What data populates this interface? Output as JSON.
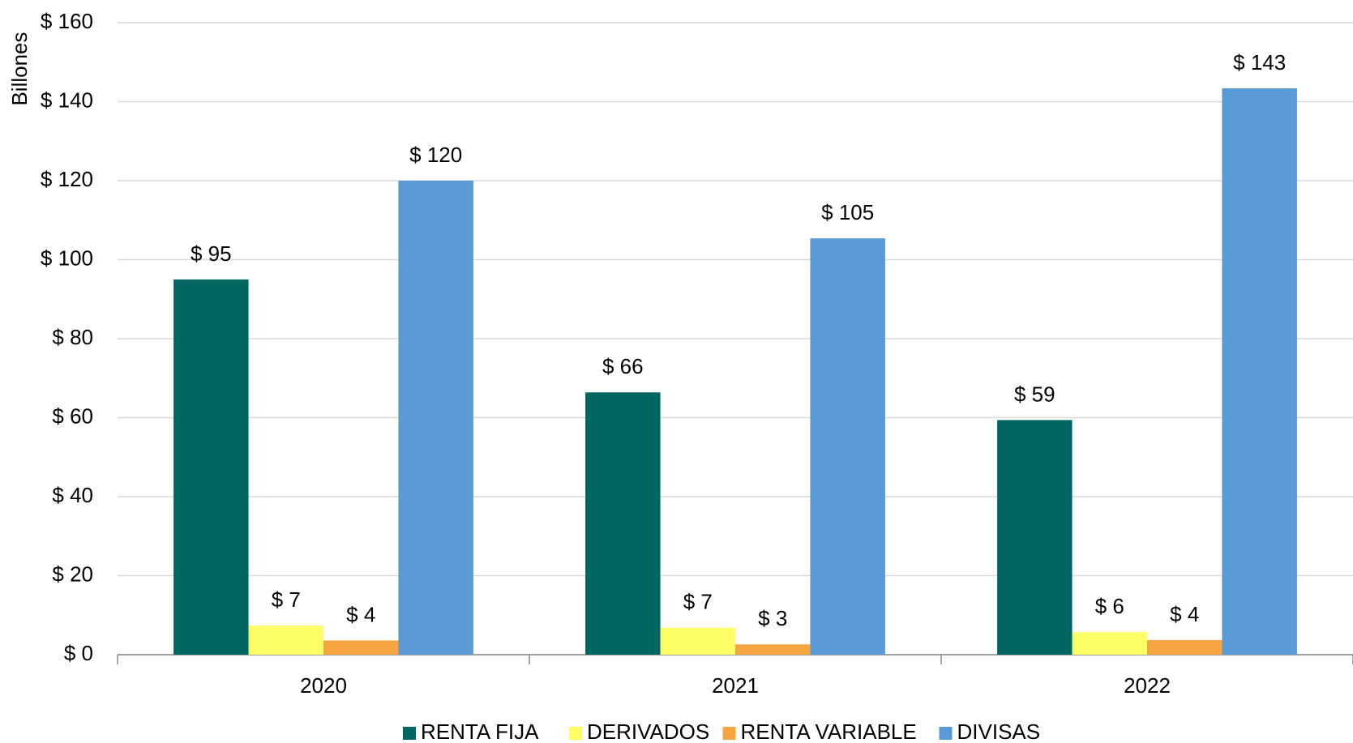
{
  "chart_data": {
    "type": "bar",
    "y_label": "Billones",
    "categories": [
      "2020",
      "2021",
      "2022"
    ],
    "series": [
      {
        "name": "RENTA FIJA",
        "color": "#006661",
        "values": [
          95.0,
          66.4,
          59.4
        ],
        "value_labels": [
          "$ 95",
          "$ 66",
          "$ 59"
        ]
      },
      {
        "name": "DERIVADOS",
        "color": "#ffff66",
        "values": [
          7.4,
          6.8,
          5.7
        ],
        "value_labels": [
          "$ 7",
          "$ 7",
          "$ 6"
        ]
      },
      {
        "name": "RENTA VARIABLE",
        "color": "#f7a540",
        "values": [
          3.6,
          2.6,
          3.7
        ],
        "value_labels": [
          "$ 4",
          "$ 3",
          "$ 4"
        ]
      },
      {
        "name": "DIVISAS",
        "color": "#5b9bd5",
        "values": [
          120,
          105.4,
          143.4
        ],
        "value_labels": [
          "$ 120",
          "$ 105",
          "$ 143"
        ]
      }
    ],
    "ylim": [
      0,
      160
    ],
    "yticks": [
      {
        "value": 0,
        "label": "$ 0"
      },
      {
        "value": 20,
        "label": "$ 20"
      },
      {
        "value": 40,
        "label": "$ 40"
      },
      {
        "value": 60,
        "label": "$ 60"
      },
      {
        "value": 80,
        "label": "$ 80"
      },
      {
        "value": 100,
        "label": "$ 100"
      },
      {
        "value": 120,
        "label": "$ 120"
      },
      {
        "value": 140,
        "label": "$ 140"
      },
      {
        "value": 160,
        "label": "$ 160"
      }
    ],
    "grid": true,
    "legend": "bottom"
  }
}
